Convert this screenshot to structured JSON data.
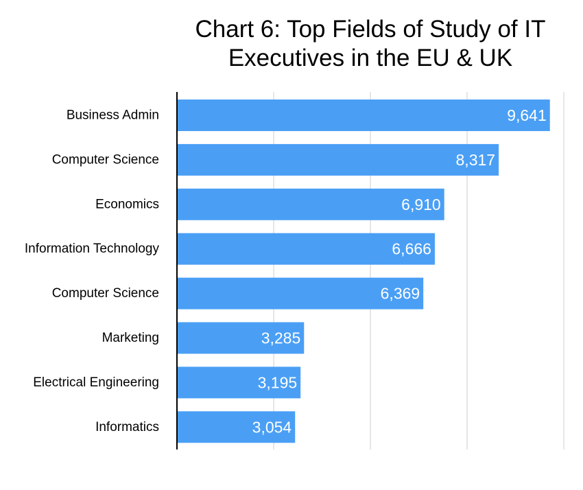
{
  "chart_data": {
    "type": "bar",
    "orientation": "horizontal",
    "title_lines": [
      "Chart 6: Top Fields of Study of IT",
      "Executives in the EU & UK"
    ],
    "categories": [
      "Business Admin",
      "Computer Science",
      "Economics",
      "Information Technology",
      "Computer Science",
      "Marketing",
      "Electrical Engineering",
      "Informatics"
    ],
    "values": [
      9641,
      8317,
      6910,
      6666,
      6369,
      3285,
      3195,
      3054
    ],
    "value_labels": [
      "9,641",
      "8,317",
      "6,910",
      "6,666",
      "6,369",
      "3,285",
      "3,195",
      "3,054"
    ],
    "xlim": [
      0,
      10000
    ],
    "x_gridlines": [
      2500,
      5000,
      7500,
      10000
    ],
    "grid": true,
    "legend": "none",
    "bar_color": "#4A9FF5",
    "gridline_color": "#cccccc",
    "axis_color": "#000000"
  }
}
